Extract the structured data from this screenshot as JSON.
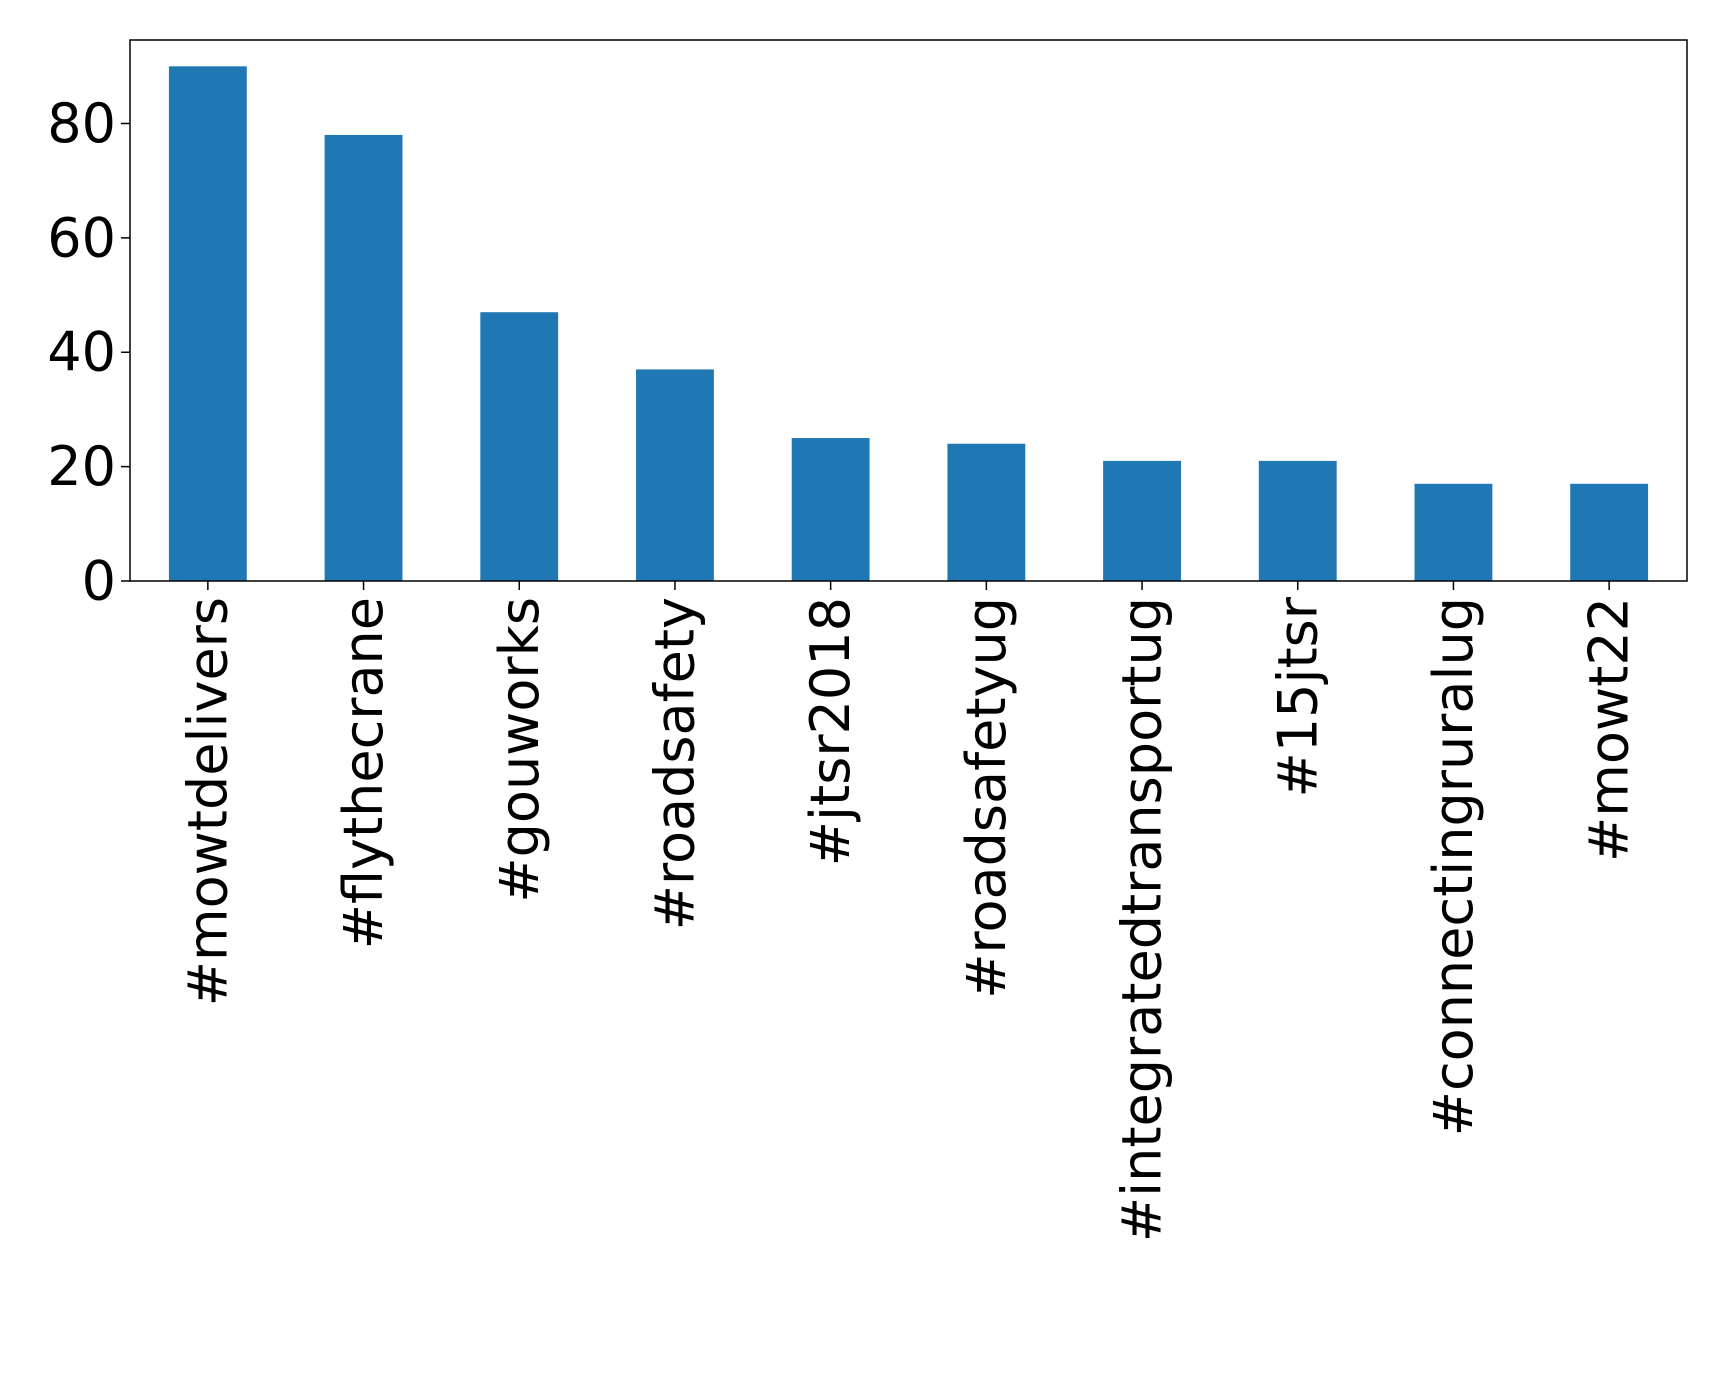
{
  "chart_data": {
    "type": "bar",
    "categories": [
      "#mowtdelivers",
      "#flythecrane",
      "#gouworks",
      "#roadsafety",
      "#jtsr2018",
      "#roadsafetyug",
      "#integratedtransportug",
      "#15jtsr",
      "#connectingruralug",
      "#mowt22"
    ],
    "values": [
      90,
      78,
      47,
      37,
      25,
      24,
      21,
      21,
      17,
      17
    ],
    "color": "#1f77b4",
    "ylim": [
      0,
      94.6
    ],
    "yticks": [
      0,
      20,
      40,
      60,
      80
    ],
    "grid": false
  }
}
